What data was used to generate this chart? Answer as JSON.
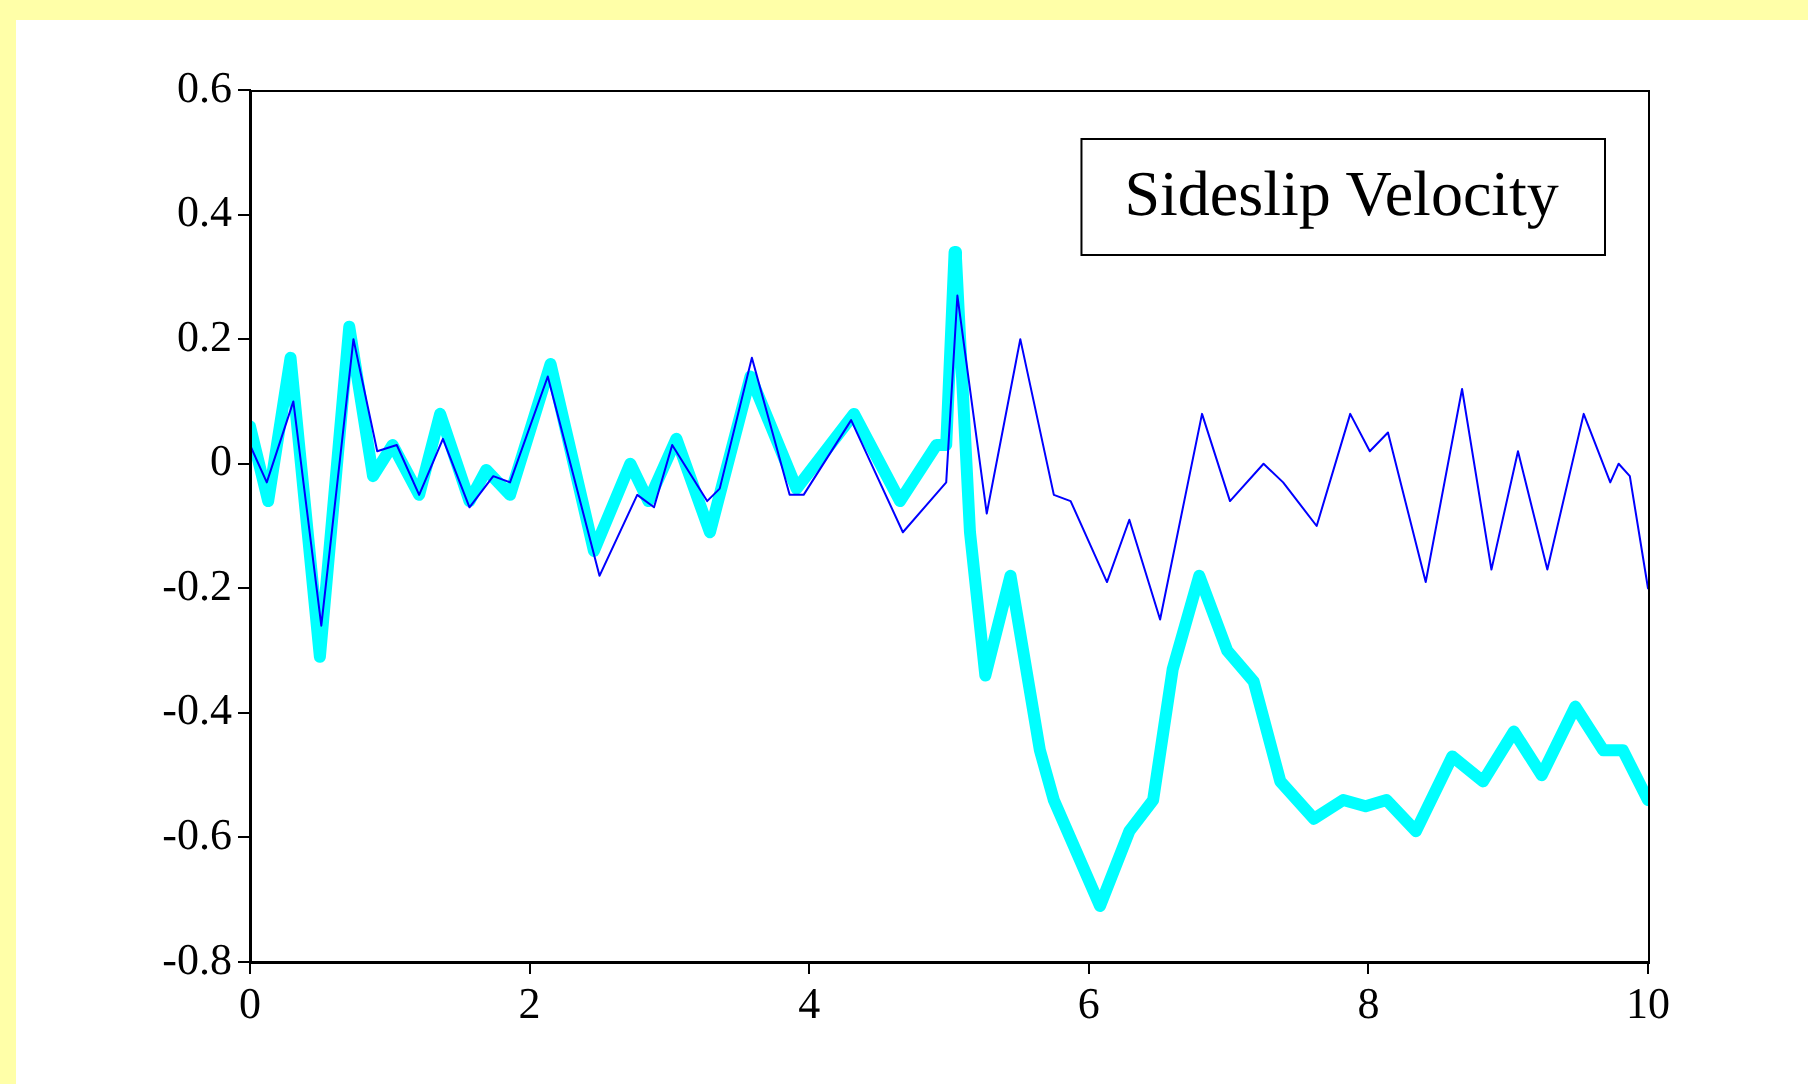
{
  "chart_data": {
    "type": "line",
    "annotations": [
      "Sideslip Velocity"
    ],
    "xlim": [
      0,
      10
    ],
    "xticks": [
      0,
      2,
      4,
      6,
      8,
      10
    ],
    "ylim": [
      -0.8,
      0.6
    ],
    "yticks": [
      -0.8,
      -0.6,
      -0.4,
      -0.2,
      0,
      0.2,
      0.4,
      0.6
    ],
    "grid": false,
    "legend": false,
    "marker": "none",
    "line_style": "solid",
    "series": [
      {
        "color": "#00ffff",
        "x": [
          0,
          0.13,
          0.29,
          0.5,
          0.71,
          0.88,
          1.02,
          1.21,
          1.36,
          1.57,
          1.69,
          1.86,
          2.15,
          2.46,
          2.72,
          2.85,
          3.05,
          3.29,
          3.58,
          3.91,
          4.32,
          4.65,
          4.91,
          4.98,
          5.04,
          5.05,
          5.15,
          5.26,
          5.44,
          5.65,
          5.75,
          6.08,
          6.29,
          6.46,
          6.6,
          6.79,
          6.99,
          7.18,
          7.37,
          7.61,
          7.82,
          7.98,
          8.13,
          8.34,
          8.6,
          8.82,
          9.04,
          9.24,
          9.48,
          9.68,
          9.82,
          10
        ],
        "values": [
          0.06,
          -0.06,
          0.17,
          -0.31,
          0.22,
          -0.02,
          0.03,
          -0.05,
          0.08,
          -0.06,
          -0.01,
          -0.05,
          0.16,
          -0.14,
          0,
          -0.06,
          0.04,
          -0.11,
          0.14,
          -0.04,
          0.08,
          -0.06,
          0.03,
          0.03,
          0.34,
          0.33,
          -0.11,
          -0.34,
          -0.18,
          -0.46,
          -0.54,
          -0.71,
          -0.59,
          -0.54,
          -0.33,
          -0.18,
          -0.3,
          -0.35,
          -0.51,
          -0.57,
          -0.54,
          -0.55,
          -0.54,
          -0.59,
          -0.47,
          -0.51,
          -0.43,
          -0.5,
          -0.39,
          -0.46,
          -0.46,
          -0.54
        ]
      },
      {
        "color": "#0000ff",
        "x": [
          0,
          0.12,
          0.31,
          0.51,
          0.74,
          0.91,
          1.05,
          1.21,
          1.38,
          1.57,
          1.74,
          1.86,
          2.13,
          2.5,
          2.77,
          2.89,
          3.02,
          3.27,
          3.36,
          3.59,
          3.86,
          3.96,
          4.3,
          4.67,
          4.98,
          5.06,
          5.27,
          5.51,
          5.75,
          5.87,
          6.13,
          6.29,
          6.51,
          6.81,
          7.01,
          7.25,
          7.39,
          7.63,
          7.87,
          8.01,
          8.14,
          8.41,
          8.67,
          8.88,
          9.07,
          9.28,
          9.54,
          9.73,
          9.79,
          9.87,
          10
        ],
        "values": [
          0.03,
          -0.03,
          0.1,
          -0.26,
          0.2,
          0.02,
          0.03,
          -0.05,
          0.04,
          -0.07,
          -0.02,
          -0.03,
          0.14,
          -0.18,
          -0.05,
          -0.07,
          0.03,
          -0.06,
          -0.04,
          0.17,
          -0.05,
          -0.05,
          0.07,
          -0.11,
          -0.03,
          0.27,
          -0.08,
          0.2,
          -0.05,
          -0.06,
          -0.19,
          -0.09,
          -0.25,
          0.08,
          -0.06,
          0,
          -0.03,
          -0.1,
          0.08,
          0.02,
          0.05,
          -0.19,
          0.12,
          -0.17,
          0.02,
          -0.17,
          0.08,
          -0.03,
          0,
          -0.02,
          -0.2
        ]
      }
    ]
  }
}
